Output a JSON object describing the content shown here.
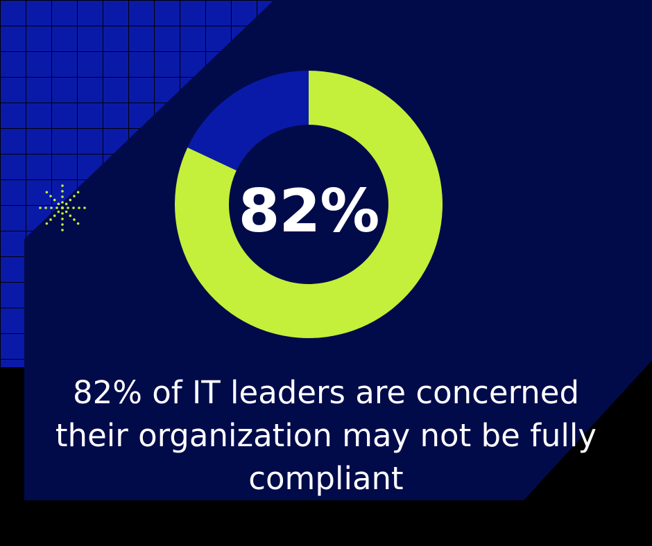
{
  "colors": {
    "background": "#000000",
    "panel": "#020b4a",
    "grid_fill": "#0a1aa8",
    "grid_line": "#000000",
    "accent": "#c4ef3a",
    "remainder": "#0a1aa8",
    "text": "#ffffff"
  },
  "icons": {
    "sparkle": "sparkle-burst-icon"
  },
  "chart_data": {
    "type": "pie",
    "style": "donut",
    "center_label": "82%",
    "slices": [
      {
        "value": 82,
        "color": "#c4ef3a"
      },
      {
        "value": 18,
        "color": "#0a1aa8"
      }
    ],
    "title": "",
    "caption": "82% of IT leaders are concerned their organization may not be fully compliant"
  }
}
